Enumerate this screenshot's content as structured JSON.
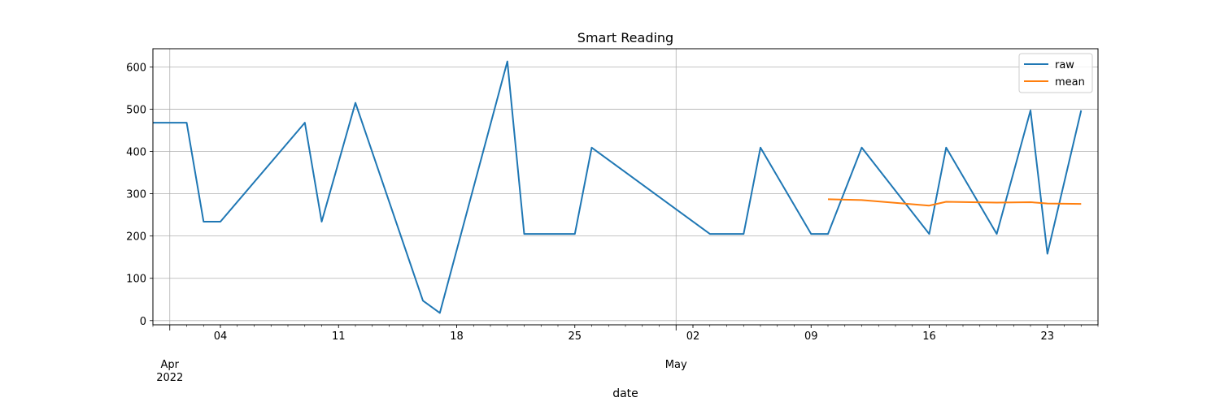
{
  "chart_data": {
    "type": "line",
    "title": "Smart Reading",
    "xlabel": "date",
    "ylabel": "",
    "xlim": [
      "2022-03-31",
      "2022-05-26"
    ],
    "ylim": [
      -10,
      643
    ],
    "grid": true,
    "legend_position": "top-right",
    "y_ticks": [
      0,
      100,
      200,
      300,
      400,
      500,
      600
    ],
    "x_major_ticks": [
      {
        "date": "2022-04-01",
        "label": "Apr",
        "sublabel": "2022"
      },
      {
        "date": "2022-05-01",
        "label": "May",
        "sublabel": ""
      }
    ],
    "x_minor_ticks": [
      {
        "date": "2022-04-04",
        "label": "04"
      },
      {
        "date": "2022-04-11",
        "label": "11"
      },
      {
        "date": "2022-04-18",
        "label": "18"
      },
      {
        "date": "2022-04-25",
        "label": "25"
      },
      {
        "date": "2022-05-02",
        "label": "02"
      },
      {
        "date": "2022-05-09",
        "label": "09"
      },
      {
        "date": "2022-05-16",
        "label": "16"
      },
      {
        "date": "2022-05-23",
        "label": "23"
      }
    ],
    "series": [
      {
        "name": "raw",
        "color": "#1f77b4",
        "points": [
          [
            "2022-03-31",
            468
          ],
          [
            "2022-04-01",
            468
          ],
          [
            "2022-04-02",
            468
          ],
          [
            "2022-04-03",
            234
          ],
          [
            "2022-04-04",
            234
          ],
          [
            "2022-04-09",
            468
          ],
          [
            "2022-04-10",
            234
          ],
          [
            "2022-04-12",
            515
          ],
          [
            "2022-04-16",
            47
          ],
          [
            "2022-04-17",
            18
          ],
          [
            "2022-04-21",
            613
          ],
          [
            "2022-04-22",
            205
          ],
          [
            "2022-04-25",
            205
          ],
          [
            "2022-04-26",
            409
          ],
          [
            "2022-05-03",
            205
          ],
          [
            "2022-05-05",
            205
          ],
          [
            "2022-05-06",
            409
          ],
          [
            "2022-05-09",
            205
          ],
          [
            "2022-05-10",
            205
          ],
          [
            "2022-05-12",
            409
          ],
          [
            "2022-05-16",
            205
          ],
          [
            "2022-05-17",
            409
          ],
          [
            "2022-05-20",
            205
          ],
          [
            "2022-05-22",
            497
          ],
          [
            "2022-05-23",
            158
          ],
          [
            "2022-05-25",
            497
          ]
        ]
      },
      {
        "name": "mean",
        "color": "#ff7f0e",
        "points": [
          [
            "2022-05-10",
            287
          ],
          [
            "2022-05-12",
            285
          ],
          [
            "2022-05-16",
            272
          ],
          [
            "2022-05-17",
            281
          ],
          [
            "2022-05-20",
            279
          ],
          [
            "2022-05-22",
            280
          ],
          [
            "2022-05-23",
            277
          ],
          [
            "2022-05-25",
            276
          ]
        ]
      }
    ]
  }
}
